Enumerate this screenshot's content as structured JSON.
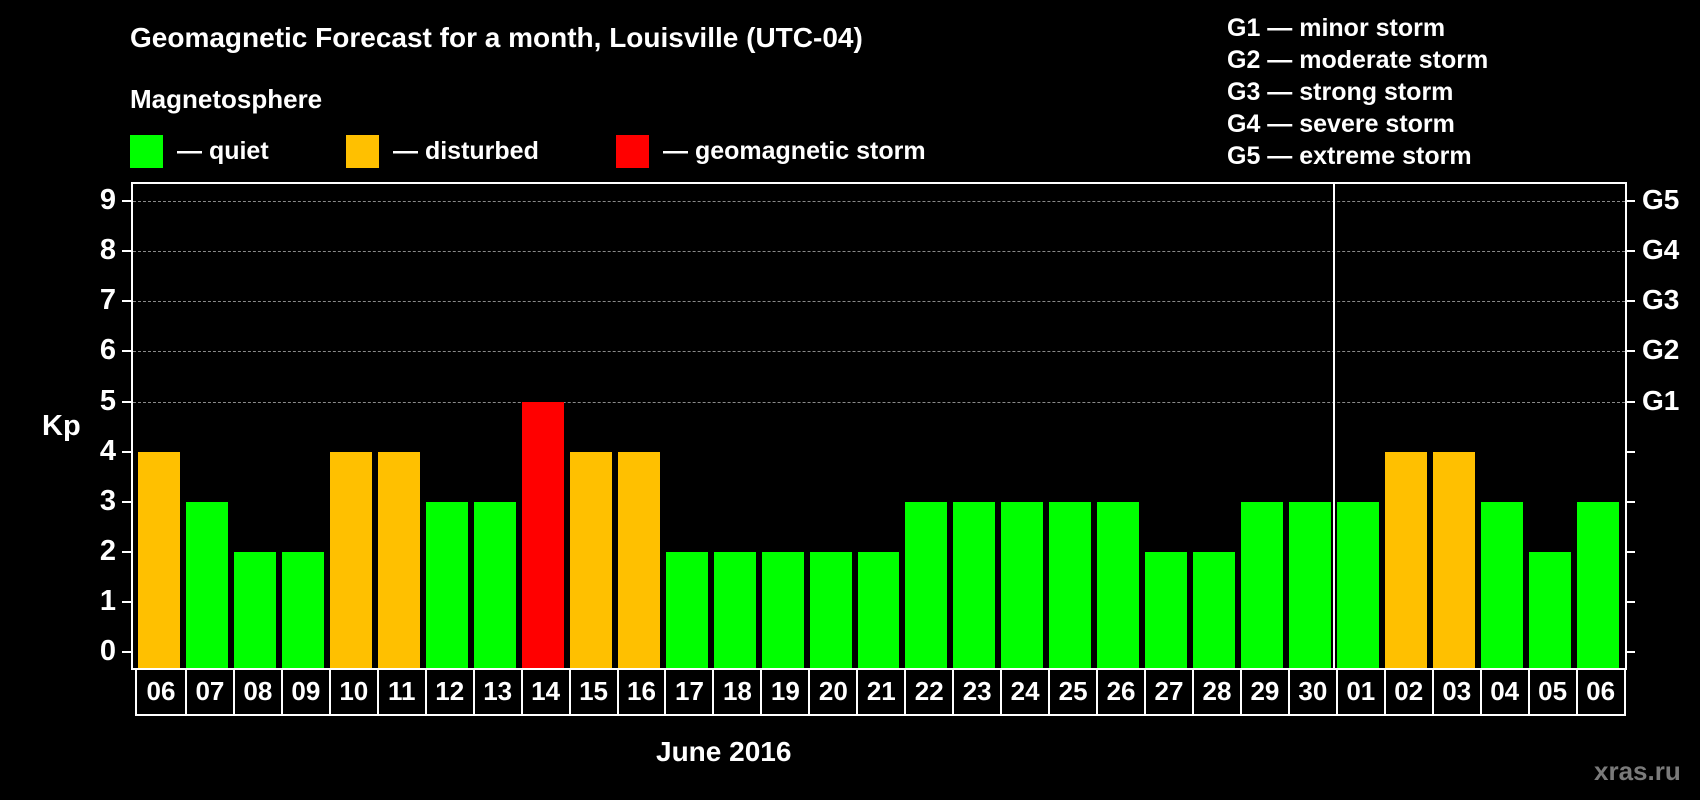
{
  "title": "Geomagnetic Forecast for a month, Louisville (UTC-04)",
  "legend": {
    "title": "Magnetosphere",
    "items": [
      {
        "key": "quiet",
        "label": "— quiet",
        "color": "#00ff00"
      },
      {
        "key": "disturbed",
        "label": "— disturbed",
        "color": "#ffc000"
      },
      {
        "key": "storm",
        "label": "— geomagnetic storm",
        "color": "#ff0000"
      }
    ]
  },
  "g_scale": [
    "G1 — minor storm",
    "G2 — moderate storm",
    "G3 — strong storm",
    "G4 — severe storm",
    "G5 — extreme storm"
  ],
  "axis": {
    "ylabel": "Kp",
    "yticks": [
      "0",
      "1",
      "2",
      "3",
      "4",
      "5",
      "6",
      "7",
      "8",
      "9"
    ],
    "right_labels": [
      {
        "kp": 5,
        "label": "G1"
      },
      {
        "kp": 6,
        "label": "G2"
      },
      {
        "kp": 7,
        "label": "G3"
      },
      {
        "kp": 8,
        "label": "G4"
      },
      {
        "kp": 9,
        "label": "G5"
      }
    ],
    "xlabel": "June 2016"
  },
  "watermark": "xras.ru",
  "colors": {
    "background": "#000000",
    "quiet": "#00ff00",
    "disturbed": "#ffc000",
    "storm": "#ff0000",
    "grid": "#8a8a8a"
  },
  "chart_data": {
    "type": "bar",
    "title": "Geomagnetic Forecast for a month, Louisville (UTC-04)",
    "xlabel": "June 2016",
    "ylabel": "Kp",
    "ylim": [
      0,
      9
    ],
    "grid": "dashed horizontal at Kp 5-9",
    "legend_position": "top-left",
    "month_boundary_after": "30",
    "categories": [
      "06",
      "07",
      "08",
      "09",
      "10",
      "11",
      "12",
      "13",
      "14",
      "15",
      "16",
      "17",
      "18",
      "19",
      "20",
      "21",
      "22",
      "23",
      "24",
      "25",
      "26",
      "27",
      "28",
      "29",
      "30",
      "01",
      "02",
      "03",
      "04",
      "05",
      "06"
    ],
    "values": [
      4,
      3,
      2,
      2,
      4,
      4,
      3,
      3,
      5,
      4,
      4,
      2,
      2,
      2,
      2,
      2,
      3,
      3,
      3,
      3,
      3,
      2,
      2,
      3,
      3,
      3,
      4,
      4,
      3,
      2,
      3
    ],
    "status": [
      "disturbed",
      "quiet",
      "quiet",
      "quiet",
      "disturbed",
      "disturbed",
      "quiet",
      "quiet",
      "storm",
      "disturbed",
      "disturbed",
      "quiet",
      "quiet",
      "quiet",
      "quiet",
      "quiet",
      "quiet",
      "quiet",
      "quiet",
      "quiet",
      "quiet",
      "quiet",
      "quiet",
      "quiet",
      "quiet",
      "quiet",
      "disturbed",
      "disturbed",
      "quiet",
      "quiet",
      "quiet"
    ]
  }
}
